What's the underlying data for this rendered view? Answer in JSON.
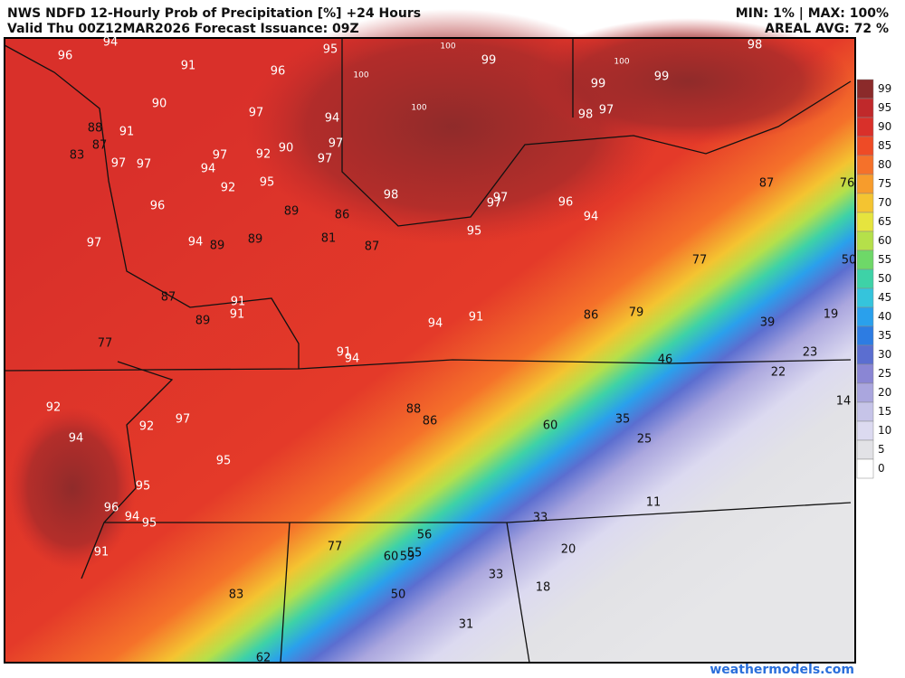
{
  "header": {
    "title": "NWS NDFD 12-Hourly Prob of Precipitation [%] +24 Hours",
    "valid": "Valid Thu 00Z12MAR2026   Forecast Issuance: 09Z",
    "minmax": "MIN: 1% | MAX: 100%",
    "areal_avg": "AREAL AVG: 72 %"
  },
  "colorbar": {
    "levels": [
      99,
      95,
      90,
      85,
      80,
      75,
      70,
      65,
      60,
      55,
      50,
      45,
      40,
      35,
      30,
      25,
      20,
      15,
      10,
      5,
      0
    ],
    "colors": [
      "#8b2a2a",
      "#c0292b",
      "#d9302a",
      "#ee4b26",
      "#f5712a",
      "#f79c2c",
      "#f4c431",
      "#e6e43e",
      "#b5e04a",
      "#6ed868",
      "#3ed2a7",
      "#35c4dc",
      "#2aa0ec",
      "#2d7ce2",
      "#5b6ed0",
      "#8a86d4",
      "#aaa6de",
      "#c6c4e8",
      "#dcdaf0",
      "#e2e2e6",
      "#ffffff"
    ]
  },
  "map_labels": [
    94,
    96,
    91,
    96,
    95,
    100,
    99,
    100,
    100,
    98,
    100,
    99,
    99,
    98,
    97,
    90,
    97,
    94,
    88,
    91,
    87,
    83,
    97,
    97,
    97,
    94,
    92,
    90,
    97,
    97,
    95,
    92,
    96,
    98,
    97,
    97,
    96,
    94,
    87,
    76,
    89,
    86,
    81,
    87,
    95,
    97,
    94,
    89,
    89,
    77,
    50,
    87,
    91,
    91,
    89,
    94,
    91,
    86,
    79,
    39,
    19,
    77,
    91,
    94,
    23,
    46,
    22,
    14,
    92,
    88,
    86,
    97,
    92,
    60,
    35,
    94,
    25,
    95,
    95,
    11,
    96,
    94,
    95,
    33,
    56,
    77,
    91,
    20,
    60,
    59,
    55,
    33,
    18,
    83,
    50,
    31,
    62
  ],
  "footer": "weathermodels.com"
}
